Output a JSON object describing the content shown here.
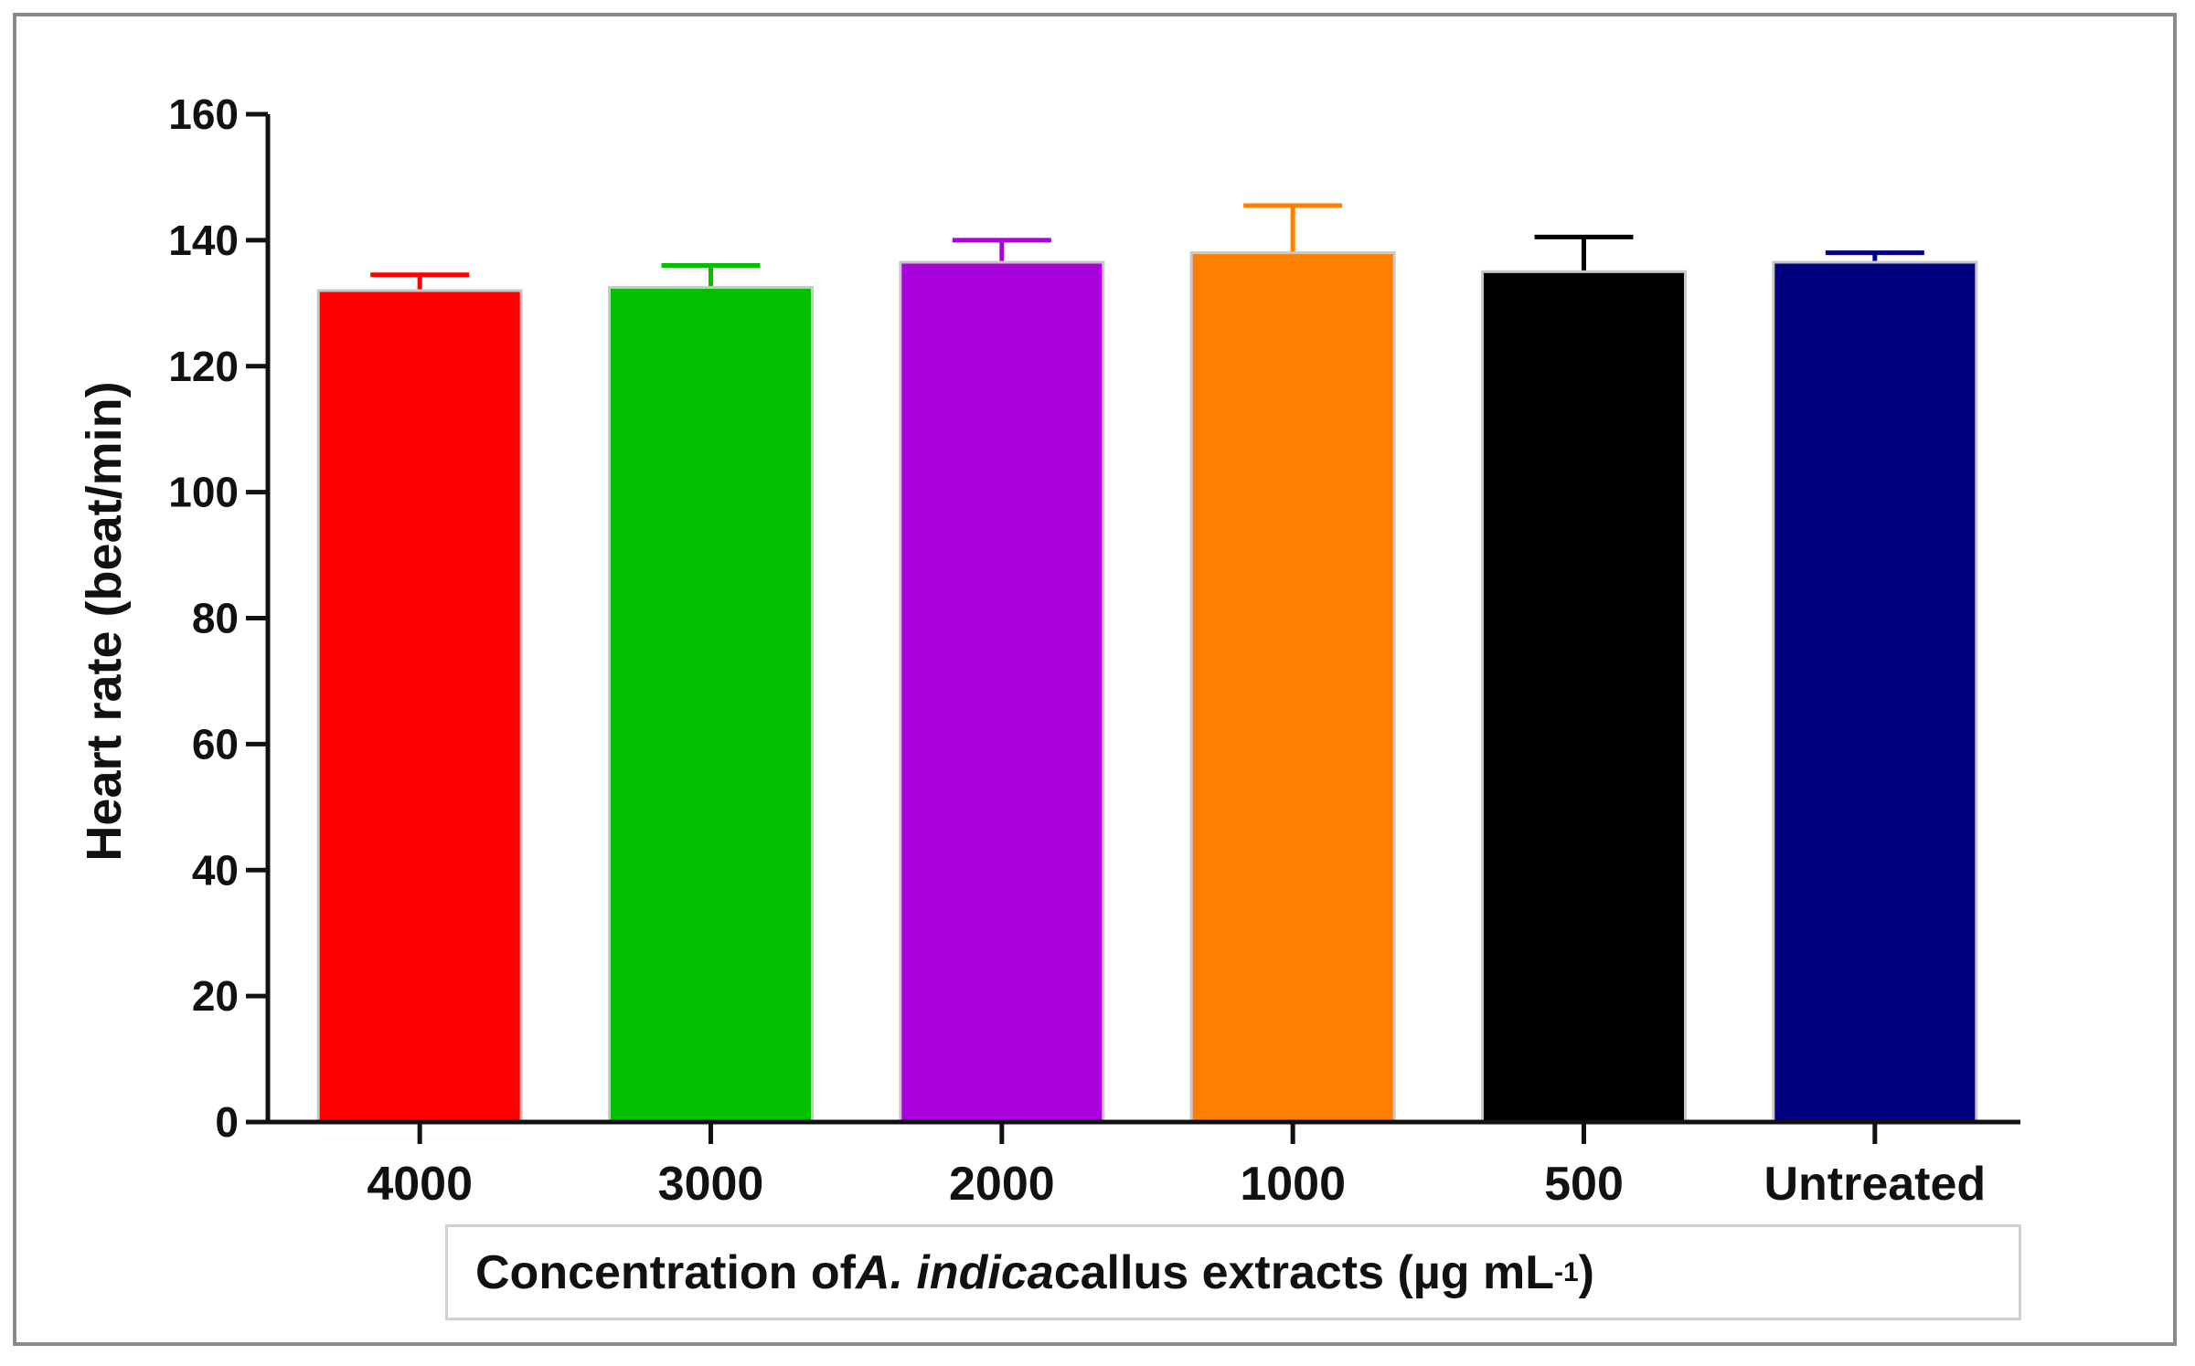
{
  "chart_data": {
    "type": "bar",
    "title": "",
    "ylabel": "Heart rate (beat/min)",
    "xlabel": {
      "prefix": "Concentration of ",
      "italic": "A. indica",
      "suffix": " callus extracts (µg mL",
      "sup": "-1",
      "close": ")"
    },
    "ylim": [
      0,
      160
    ],
    "yticks": [
      0,
      20,
      40,
      60,
      80,
      100,
      120,
      140,
      160
    ],
    "categories": [
      "4000",
      "3000",
      "2000",
      "1000",
      "500",
      "Untreated"
    ],
    "values": [
      132,
      132.5,
      136.5,
      138,
      135,
      136.5
    ],
    "errors": [
      2.5,
      3.5,
      3.5,
      7.5,
      5.5,
      1.5
    ],
    "colors": [
      "#ff0000",
      "#00c000",
      "#aa00dd",
      "#ff8000",
      "#000000",
      "#000080"
    ]
  }
}
